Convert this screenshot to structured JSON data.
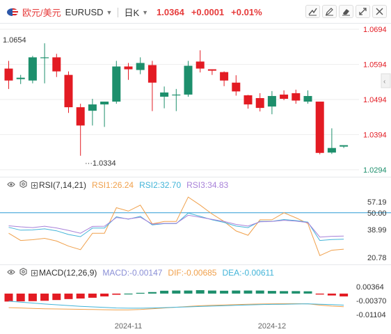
{
  "header": {
    "pair_cn": "欧元/美元",
    "symbol": "EURUSD",
    "period": "日K",
    "price": "1.0364",
    "change": "+0.0001",
    "change_pct": "+0.01%"
  },
  "tools": [
    "draw-line-icon",
    "pen-icon",
    "eraser-icon",
    "expand-icon",
    "close-icon"
  ],
  "colors": {
    "up": "#1d8f6c",
    "down": "#e31b23",
    "rsi1": "#f0a04b",
    "rsi2": "#42b4d8",
    "rsi3": "#a881d9",
    "dif": "#f0a04b",
    "dea": "#42b4d8",
    "refline": "#2b9bd6"
  },
  "rsi_header": {
    "name": "RSI(7,14,21)",
    "rsi1": "RSI1:26.24",
    "rsi2": "RSI2:32.70",
    "rsi3": "RSI3:34.83"
  },
  "macd_header": {
    "name": "MACD(12,26,9)",
    "macd": "MACD:-0.00147",
    "dif": "DIF:-0.00685",
    "dea": "DEA:-0.00611"
  },
  "chart_data": [
    {
      "type": "candlestick",
      "title": "EURUSD",
      "y_ticks": [
        "1.0694",
        "1.0594",
        "1.0494",
        "1.0394",
        "1.0294"
      ],
      "ylim": [
        1.0294,
        1.0694
      ],
      "annotations": {
        "high_label": "1.0654",
        "low_label": "1.0334"
      },
      "x_labels": [
        {
          "index": 10,
          "label": "2024-11"
        },
        {
          "index": 22,
          "label": "2024-12"
        }
      ],
      "candles": [
        [
          1.0582,
          1.0604,
          1.0524,
          1.0548
        ],
        [
          1.0552,
          1.0564,
          1.0538,
          1.0556
        ],
        [
          1.0548,
          1.0618,
          1.054,
          1.0614
        ],
        [
          1.0612,
          1.0654,
          1.054,
          1.0614
        ],
        [
          1.0614,
          1.0624,
          1.0558,
          1.0574
        ],
        [
          1.0564,
          1.0574,
          1.0456,
          1.0472
        ],
        [
          1.0472,
          1.0482,
          1.0334,
          1.042
        ],
        [
          1.0462,
          1.0496,
          1.042,
          1.048
        ],
        [
          1.048,
          1.0488,
          1.0416,
          1.0488
        ],
        [
          1.0488,
          1.0604,
          1.0482,
          1.0588
        ],
        [
          1.0588,
          1.0598,
          1.055,
          1.058
        ],
        [
          1.0578,
          1.0614,
          1.0566,
          1.0598
        ],
        [
          1.0592,
          1.0604,
          1.0461,
          1.0542
        ],
        [
          1.0502,
          1.0531,
          1.0469,
          1.0514
        ],
        [
          1.0508,
          1.0524,
          1.0461,
          1.0508
        ],
        [
          1.0508,
          1.0604,
          1.0502,
          1.059
        ],
        [
          1.0602,
          1.0634,
          1.0571,
          1.0582
        ],
        [
          1.058,
          1.058,
          1.0564,
          1.0576
        ],
        [
          1.0572,
          1.0574,
          1.0532,
          1.0548
        ],
        [
          1.0542,
          1.0563,
          1.0505,
          1.0517
        ],
        [
          1.0506,
          1.0507,
          1.0468,
          1.048
        ],
        [
          1.0498,
          1.0512,
          1.046,
          1.047
        ],
        [
          1.0474,
          1.0518,
          1.0452,
          1.0504
        ],
        [
          1.0508,
          1.052,
          1.0492,
          1.0496
        ],
        [
          1.0512,
          1.0522,
          1.0482,
          1.0491
        ],
        [
          1.0488,
          1.052,
          1.0482,
          1.0504
        ],
        [
          1.0488,
          1.0487,
          1.0338,
          1.0342
        ],
        [
          1.0343,
          1.0412,
          1.0339,
          1.0356
        ],
        [
          1.036,
          1.0362,
          1.0356,
          1.0364
        ]
      ]
    },
    {
      "type": "line",
      "title": "RSI(7,14,21)",
      "y_ticks": [
        "57.19",
        "50.00",
        "38.99",
        "20.78"
      ],
      "ylim": [
        20.78,
        57.19
      ],
      "reference_line": 50.0,
      "series": [
        {
          "name": "RSI1",
          "values": [
            36.6,
            31.9,
            32.4,
            33.3,
            31.5,
            28.2,
            25.9,
            36.6,
            36.6,
            53.3,
            51.1,
            55.0,
            42.7,
            44.3,
            44.3,
            60.3,
            55.0,
            49.2,
            44.3,
            38.1,
            35.3,
            45.4,
            45.4,
            50.0,
            46.7,
            43.0,
            22.0,
            25.5,
            26.2
          ]
        },
        {
          "name": "RSI2",
          "values": [
            40.5,
            38.6,
            38.8,
            39.5,
            38.2,
            35.8,
            34.4,
            40.0,
            40.0,
            47.4,
            45.8,
            47.7,
            42.1,
            42.9,
            42.9,
            49.8,
            47.7,
            45.4,
            43.7,
            41.3,
            40.3,
            44.4,
            44.4,
            45.6,
            44.9,
            43.9,
            31.9,
            32.5,
            32.7
          ]
        },
        {
          "name": "RSI3",
          "values": [
            41.5,
            40.8,
            40.3,
            41.2,
            40.1,
            38.5,
            36.6,
            41.1,
            41.2,
            46.9,
            46.0,
            47.1,
            42.6,
            43.1,
            43.1,
            48.4,
            47.1,
            45.7,
            44.3,
            42.4,
            41.3,
            44.1,
            44.3,
            45.1,
            44.6,
            43.6,
            34.1,
            34.6,
            34.8
          ]
        }
      ]
    },
    {
      "type": "bar+line",
      "title": "MACD(12,26,9)",
      "y_ticks": [
        "0.00364",
        "-0.00370",
        "-0.01104"
      ],
      "ylim": [
        -0.01104,
        0.00364
      ],
      "bars_name": "MACD",
      "bars": [
        -0.0042,
        -0.0041,
        -0.004,
        -0.0038,
        -0.0034,
        -0.0029,
        -0.0026,
        -0.0022,
        -0.0015,
        -0.0006,
        0.0,
        0.0004,
        0.0008,
        0.0015,
        0.0016,
        0.0016,
        0.0018,
        0.0016,
        0.0015,
        0.0016,
        0.0016,
        0.0016,
        0.0014,
        0.0013,
        0.0013,
        0.0012,
        -0.0005,
        -0.001,
        -0.0015
      ],
      "series": [
        {
          "name": "DIF",
          "values": [
            -0.0074,
            -0.0076,
            -0.0078,
            -0.008,
            -0.0081,
            -0.0082,
            -0.0083,
            -0.0084,
            -0.0085,
            -0.0086,
            -0.0086,
            -0.0084,
            -0.008,
            -0.0076,
            -0.0072,
            -0.0068,
            -0.0064,
            -0.0062,
            -0.006,
            -0.0058,
            -0.0056,
            -0.0055,
            -0.0054,
            -0.0053,
            -0.0053,
            -0.0054,
            -0.0061,
            -0.0066,
            -0.0069
          ]
        },
        {
          "name": "DEA",
          "values": [
            -0.004,
            -0.0045,
            -0.005,
            -0.0055,
            -0.0059,
            -0.0063,
            -0.0067,
            -0.007,
            -0.0073,
            -0.0076,
            -0.0077,
            -0.0077,
            -0.0076,
            -0.0074,
            -0.0072,
            -0.007,
            -0.0068,
            -0.0066,
            -0.0064,
            -0.0062,
            -0.006,
            -0.0058,
            -0.0057,
            -0.0056,
            -0.0055,
            -0.0054,
            -0.0056,
            -0.0058,
            -0.0061
          ]
        }
      ]
    }
  ]
}
